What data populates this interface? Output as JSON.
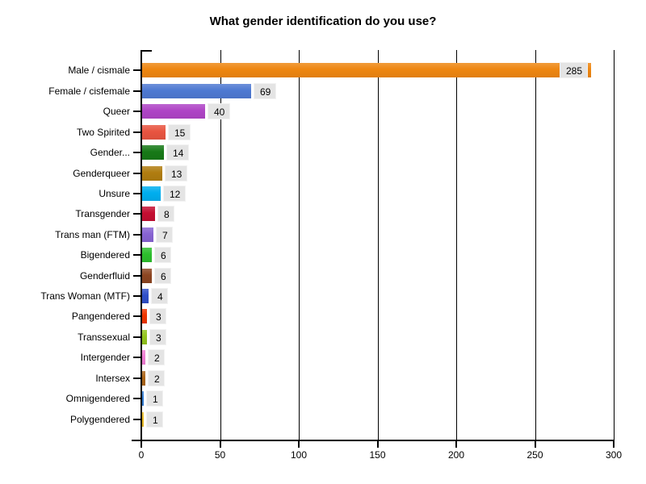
{
  "title": "What gender identification do you use?",
  "chart_data": {
    "type": "bar",
    "orientation": "horizontal",
    "title": "What gender identification do you use?",
    "categories": [
      "Male / cismale",
      "Female / cisfemale",
      "Queer",
      "Two Spirited",
      "Gender...",
      "Genderqueer",
      "Unsure",
      "Transgender",
      "Trans man (FTM)",
      "Bigendered",
      "Genderfluid",
      "Trans Woman (MTF)",
      "Pangendered",
      "Transsexual",
      "Intergender",
      "Intersex",
      "Omnigendered",
      "Polygendered"
    ],
    "values": [
      285,
      69,
      40,
      15,
      14,
      13,
      12,
      8,
      7,
      6,
      6,
      4,
      3,
      3,
      2,
      2,
      1,
      1
    ],
    "bar_colors": [
      "#ee8610",
      "#4e79d2",
      "#af44c6",
      "#e85440",
      "#177917",
      "#b07d10",
      "#00aeef",
      "#c40e31",
      "#8763d2",
      "#2cbe2c",
      "#8c4521",
      "#2f4fc8",
      "#ee3500",
      "#92c41d",
      "#ee7cd2",
      "#ab6519",
      "#2f7ad2",
      "#ebbb22"
    ],
    "xlabel": "",
    "ylabel": "",
    "xlim": [
      0,
      300
    ],
    "x_ticks": [
      0,
      50,
      100,
      150,
      200,
      250,
      300
    ],
    "grid": "vertical-black-gridlines-at-x-ticks",
    "legend": "none",
    "value_labels_shown": true,
    "value_label_bg": "#e4e4e4",
    "axis_color": "#000000",
    "text_color": "#000000",
    "background": "#ffffff"
  }
}
